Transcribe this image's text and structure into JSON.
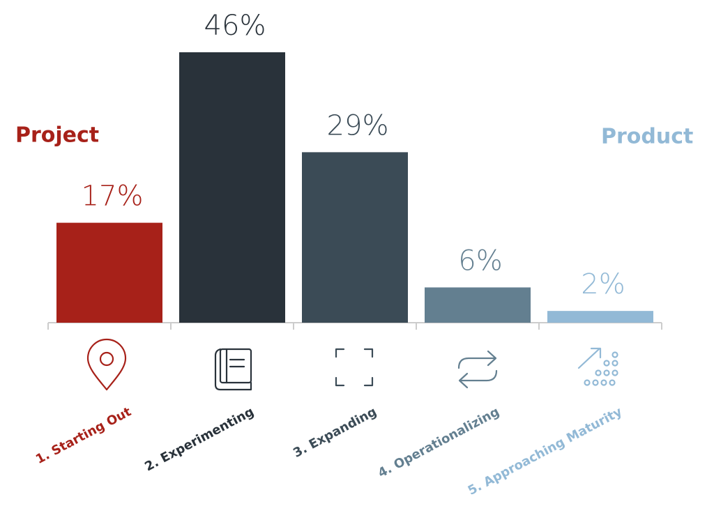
{
  "chart_data": {
    "type": "bar",
    "categories": [
      "1. Starting Out",
      "2. Experimenting",
      "3. Expanding",
      "4. Operationalizing",
      "5. Approaching Maturity"
    ],
    "values": [
      17,
      46,
      29,
      6,
      2
    ],
    "value_labels": [
      "17%",
      "46%",
      "29%",
      "6%",
      "2%"
    ],
    "colors": [
      "#a72119",
      "#29323a",
      "#3b4b56",
      "#637f90",
      "#92b9d6"
    ],
    "annotations": [
      {
        "text": "Project",
        "color": "#a72119"
      },
      {
        "text": "Product",
        "color": "#92b9d6"
      }
    ]
  }
}
